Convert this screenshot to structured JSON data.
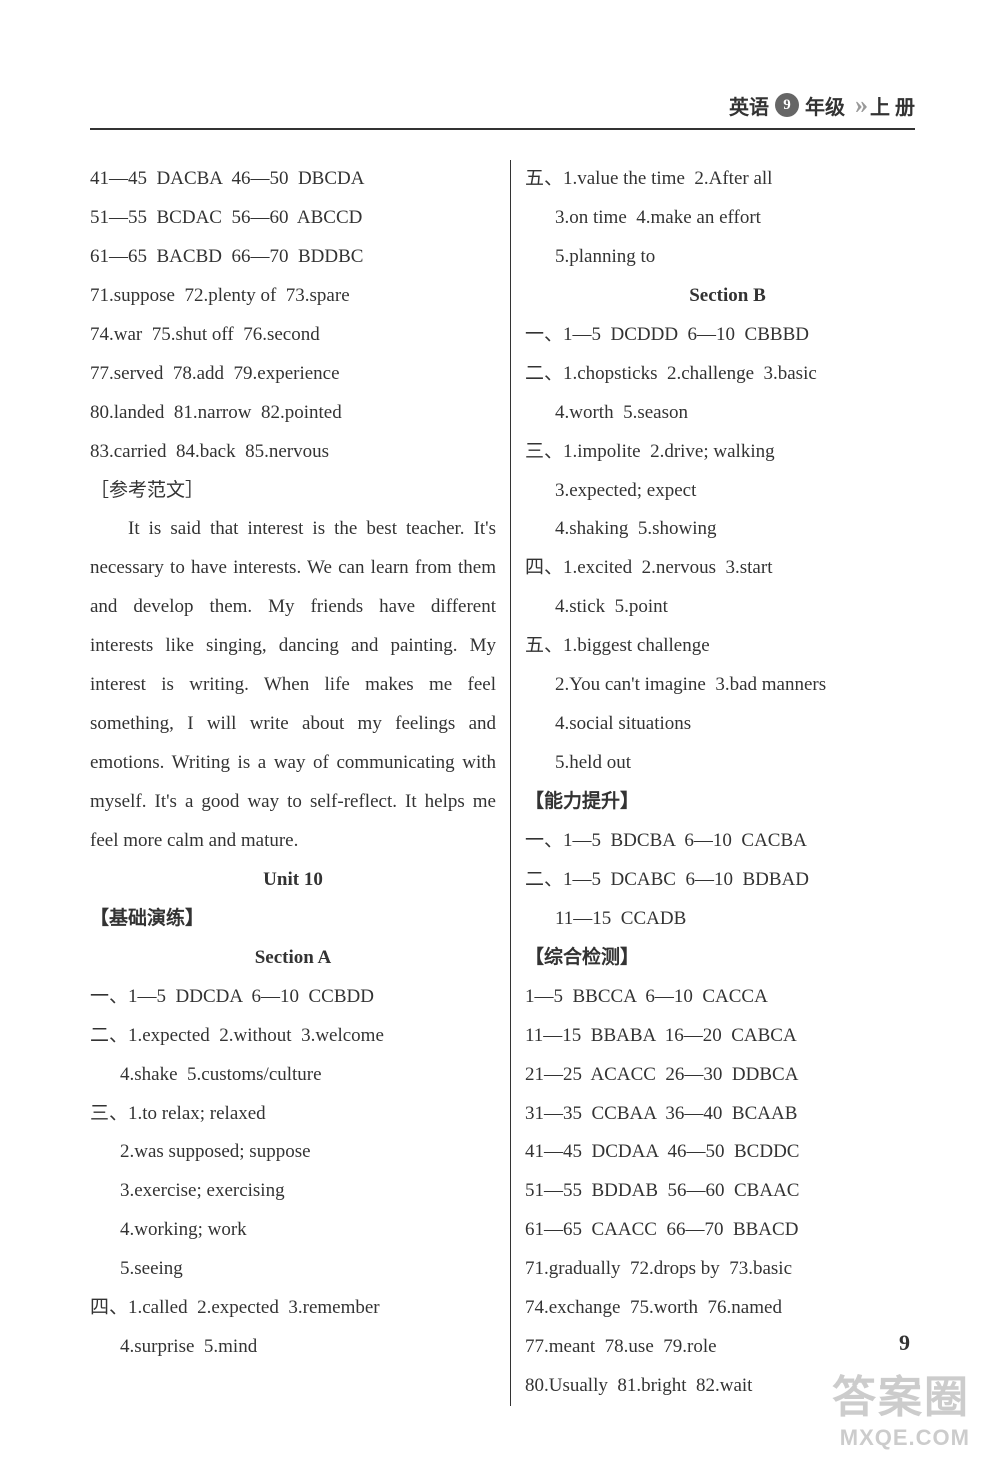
{
  "header": {
    "subject": "英语",
    "grade": "9",
    "gradeSuffix": "年级",
    "volume": "上 册"
  },
  "left": {
    "l1": "41—45  DACBA  46—50  DBCDA",
    "l2": "51—55  BCDAC  56—60  ABCCD",
    "l3": "61—65  BACBD  66—70  BDDBC",
    "l4": "71.suppose  72.plenty of  73.spare",
    "l5": "74.war  75.shut off  76.second",
    "l6": "77.served  78.add  79.experience",
    "l7": "80.landed  81.narrow  82.pointed",
    "l8": "83.carried  84.back  85.nervous",
    "essayLabel": "［参考范文］",
    "essay": "It is said that interest is the best teacher. It's necessary to have interests. We can learn from them and develop them. My friends have different interests like singing, dancing and painting. My interest is writing. When life makes me feel something, I will write about my feelings and emotions. Writing is a way of communicating with myself. It's a good way to self-reflect. It helps me feel more calm and mature.",
    "unit": "Unit 10",
    "basic": "【基础演练】",
    "secA": "Section A",
    "a1": "一、1—5  DDCDA  6—10  CCBDD",
    "a2": "二、1.expected  2.without  3.welcome",
    "a2b": "4.shake  5.customs/culture",
    "a3": "三、1.to relax; relaxed",
    "a3_2": "2.was supposed; suppose",
    "a3_3": "3.exercise; exercising",
    "a3_4": "4.working; work",
    "a3_5": "5.seeing",
    "a4": "四、1.called  2.expected  3.remember",
    "a4b": "4.surprise  5.mind"
  },
  "right": {
    "r1": "五、1.value the time  2.After all",
    "r1b": "3.on time  4.make an effort",
    "r1c": "5.planning to",
    "secB": "Section B",
    "b1": "一、1—5  DCDDD  6—10  CBBBD",
    "b2": "二、1.chopsticks  2.challenge  3.basic",
    "b2b": "4.worth  5.season",
    "b3": "三、1.impolite  2.drive; walking",
    "b3b": "3.expected; expect",
    "b3c": "4.shaking  5.showing",
    "b4": "四、1.excited  2.nervous  3.start",
    "b4b": "4.stick  5.point",
    "b5": "五、1.biggest challenge",
    "b5b": "2.You can't imagine  3.bad manners",
    "b5c": "4.social situations",
    "b5d": "5.held out",
    "ability": "【能力提升】",
    "c1": "一、1—5  BDCBA  6—10  CACBA",
    "c2": "二、1—5  DCABC  6—10  BDBAD",
    "c2b": "11—15  CCADB",
    "comp": "【综合检测】",
    "d1": "1—5  BBCCA  6—10  CACCA",
    "d2": "11—15  BBABA  16—20  CABCA",
    "d3": "21—25  ACACC  26—30  DDBCA",
    "d4": "31—35  CCBAA  36—40  BCAAB",
    "d5": "41—45  DCDAA  46—50  BCDDC",
    "d6": "51—55  BDDAB  56—60  CBAAC",
    "d7": "61—65  CAACC  66—70  BBACD",
    "d8": "71.gradually  72.drops by  73.basic",
    "d9": "74.exchange  75.worth  76.named",
    "d10": "77.meant  78.use  79.role",
    "d11": "80.Usually  81.bright  82.wait"
  },
  "pageNum": "9",
  "watermark": {
    "top": "答案圈",
    "bottom": "MXQE.COM"
  }
}
